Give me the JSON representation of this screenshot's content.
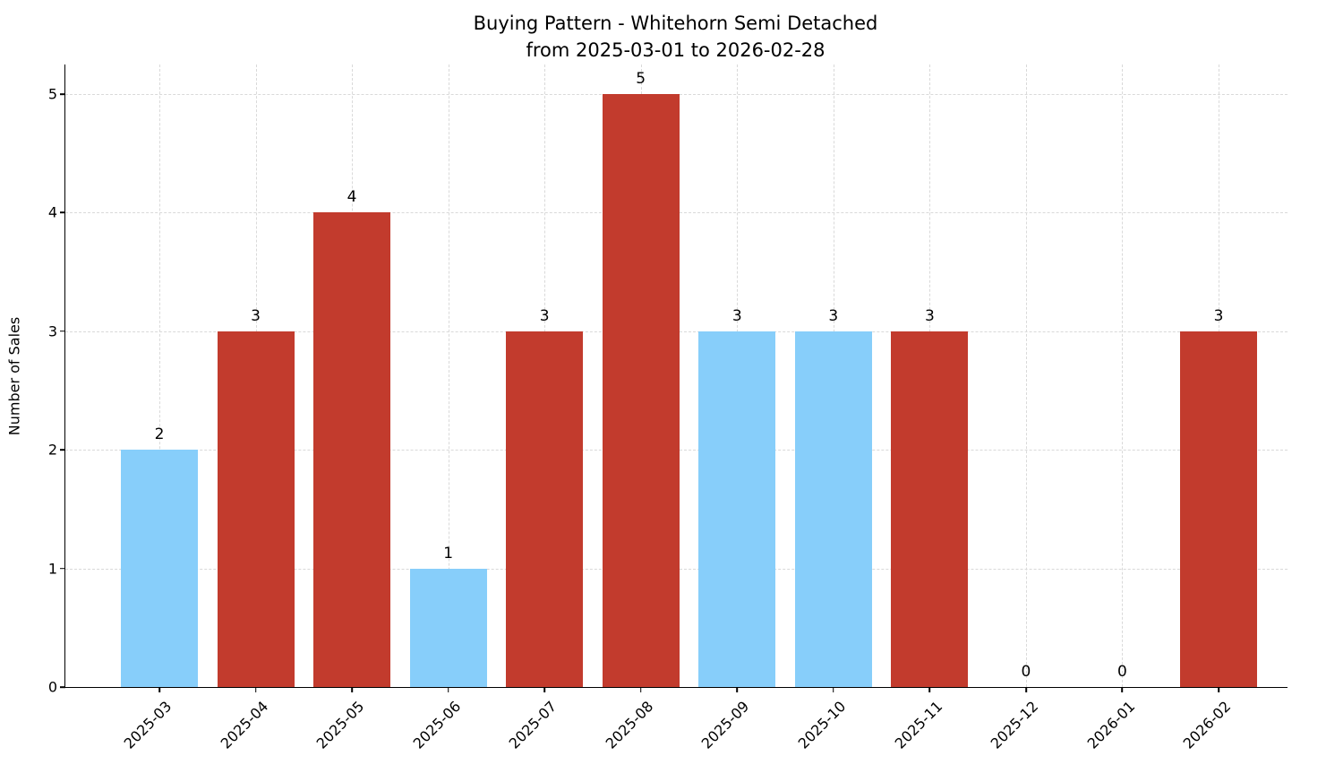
{
  "chart_data": {
    "type": "bar",
    "title": "Buying Pattern - Whitehorn Semi Detached",
    "subtitle": "from 2025-03-01 to 2026-02-28",
    "ylabel": "Number of Sales",
    "xlabel": "",
    "categories": [
      "2025-03",
      "2025-04",
      "2025-05",
      "2025-06",
      "2025-07",
      "2025-08",
      "2025-09",
      "2025-10",
      "2025-11",
      "2025-12",
      "2026-01",
      "2026-02"
    ],
    "values": [
      2,
      3,
      4,
      1,
      3,
      5,
      3,
      3,
      3,
      0,
      0,
      3
    ],
    "bar_colors": [
      "#87CEFA",
      "#c23b2d",
      "#c23b2d",
      "#87CEFA",
      "#c23b2d",
      "#c23b2d",
      "#87CEFA",
      "#87CEFA",
      "#c23b2d",
      "#c23b2d",
      "#c23b2d",
      "#c23b2d"
    ],
    "color_legend": {
      "skyblue": "#87CEFA",
      "brick_red": "#c23b2d"
    },
    "yticks": [
      0,
      1,
      2,
      3,
      4,
      5
    ],
    "ylim": [
      0,
      5.25
    ],
    "grid": true,
    "grid_style": "dashed",
    "bar_width_ratio": 0.8
  }
}
